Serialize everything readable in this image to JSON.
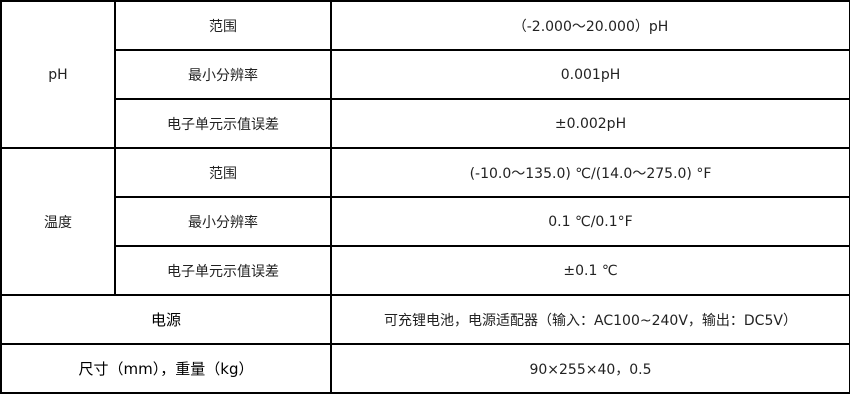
{
  "table": {
    "ph": {
      "label": "pH",
      "rows": [
        {
          "param": "范围",
          "value": "（-2.000～20.000）pH"
        },
        {
          "param": "最小分辨率",
          "value": "0.001pH"
        },
        {
          "param": "电子单元示值误差",
          "value": "±0.002pH"
        }
      ]
    },
    "temp": {
      "label": "温度",
      "rows": [
        {
          "param": "范围",
          "value": "(-10.0～135.0) ℃/(14.0～275.0) °F"
        },
        {
          "param": "最小分辨率",
          "value": "0.1 ℃/0.1°F"
        },
        {
          "param": "电子单元示值误差",
          "value": "±0.1 ℃"
        }
      ]
    },
    "power": {
      "label": "电源",
      "value": "可充锂电池，电源适配器（输入：AC100~240V，输出：DC5V）"
    },
    "size": {
      "label": "尺寸（mm），重量（kg）",
      "value": "90×255×40，0.5"
    }
  }
}
